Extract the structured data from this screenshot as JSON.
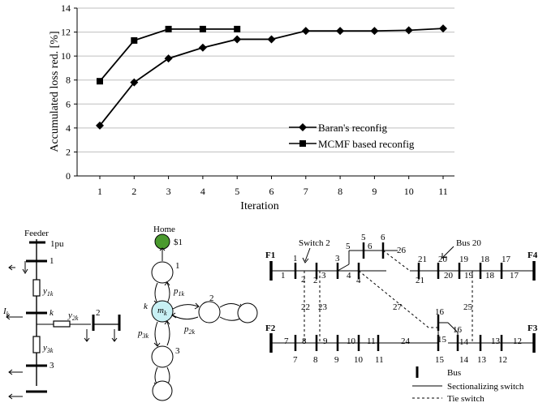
{
  "chart_data": {
    "type": "line",
    "xlabel": "Iteration",
    "ylabel": "Accumulated  loss red. [%]",
    "xlim": [
      0.5,
      11.8
    ],
    "ylim": [
      0,
      14
    ],
    "xticks": [
      "1",
      "2",
      "3",
      "4",
      "5",
      "6",
      "7",
      "8",
      "9",
      "10",
      "11"
    ],
    "yticks": [
      "0",
      "2",
      "4",
      "6",
      "8",
      "10",
      "12",
      "14"
    ],
    "grid": "horizontal",
    "legend_position": "bottom-right",
    "series": [
      {
        "name": "Baran's reconfig",
        "marker": "diamond",
        "color": "#000000",
        "x": [
          1,
          2,
          3,
          4,
          5,
          6,
          7,
          8,
          9,
          10,
          11
        ],
        "y": [
          4.2,
          7.8,
          9.8,
          10.7,
          11.4,
          11.4,
          12.1,
          12.1,
          12.1,
          12.15,
          12.3
        ]
      },
      {
        "name": "MCMF based reconfig",
        "marker": "square",
        "color": "#000000",
        "x": [
          1,
          2,
          3,
          4,
          5
        ],
        "y": [
          7.9,
          11.3,
          12.25,
          12.25,
          12.25
        ]
      }
    ]
  },
  "feeder": {
    "title": "Feeder",
    "voltage": "1pu",
    "bus_top": "1",
    "bus_k": "k",
    "bus_2": "2",
    "bus_3": "3",
    "current": "I",
    "current_sub": "k",
    "z1_main": "y",
    "z1_sub": "1k",
    "z2_main": "y",
    "z2_sub": "2k",
    "z3_main": "y",
    "z3_sub": "3k"
  },
  "flow": {
    "home_label": "Home",
    "price": "$1",
    "node_1": "1",
    "node_2": "2",
    "node_3": "3",
    "node_k": "k",
    "center_main": "m",
    "center_sub": "k",
    "p1_main": "p",
    "p1_sub": "1k",
    "p2_main": "p",
    "p2_sub": "2k",
    "p3_main": "p",
    "p3_sub": "3k",
    "node_fill": "#4a9a2e",
    "center_fill": "#c8f0f4"
  },
  "network": {
    "feeder_labels": [
      "F1",
      "F2",
      "F3",
      "F4"
    ],
    "switch_callout": "Switch 2",
    "bus_callout": "Bus 20",
    "switch_labels": [
      "1",
      "2",
      "3",
      "4",
      "5",
      "6",
      "26",
      "21",
      "20",
      "19",
      "18",
      "17",
      "22",
      "23",
      "27",
      "25",
      "16",
      "7",
      "8",
      "9",
      "10",
      "11",
      "24",
      "15",
      "14",
      "13",
      "12"
    ],
    "bus_labels": [
      "1",
      "2",
      "3",
      "4",
      "5",
      "6",
      "21",
      "20",
      "19",
      "18",
      "17",
      "7",
      "8",
      "9",
      "10",
      "11",
      "15",
      "14",
      "13",
      "12",
      "16"
    ],
    "legend": {
      "bus": "Bus",
      "sectionalizing": "Sectionalizing switch",
      "tie": "Tie switch"
    }
  }
}
